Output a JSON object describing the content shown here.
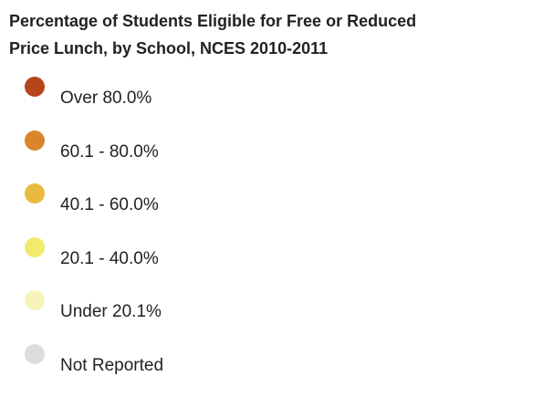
{
  "legend": {
    "title_lines": [
      "Percentage of Students Eligible for Free or Reduced",
      "Price Lunch, by School, NCES 2010-2011"
    ],
    "items": [
      {
        "label": "Over 80.0%",
        "color": "#b6451b"
      },
      {
        "label": "60.1 - 80.0%",
        "color": "#da842c"
      },
      {
        "label": "40.1 - 60.0%",
        "color": "#e9ba3e"
      },
      {
        "label": "20.1 - 40.0%",
        "color": "#f1ea6c"
      },
      {
        "label": "Under 20.1%",
        "color": "#f6f4bb"
      },
      {
        "label": "Not Reported",
        "color": "#dddddd"
      }
    ]
  }
}
